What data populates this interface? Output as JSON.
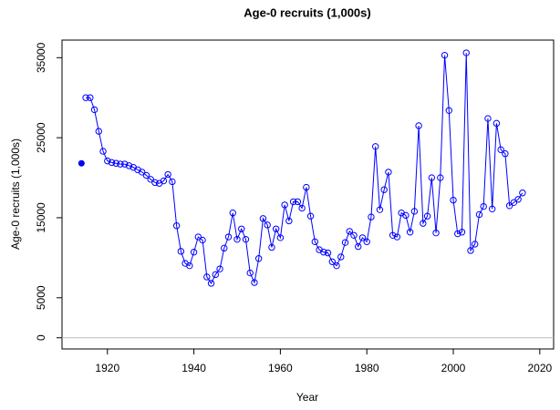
{
  "chart_data": {
    "type": "line",
    "title": "Age-0 recruits (1,000s)",
    "xlabel": "Year",
    "ylabel": "Age-0 recruits (1,000s)",
    "xlim": [
      1909.5,
      2023.2
    ],
    "ylim": [
      -1400,
      37200
    ],
    "xticks": [
      1920,
      1940,
      1960,
      1980,
      2000,
      2020
    ],
    "yticks": [
      0,
      5000,
      15000,
      25000,
      35000
    ],
    "hline": 0,
    "hline_color": "#bebebe",
    "series": [
      {
        "color": "#0000ff",
        "marker": "open-circle",
        "x": [
          1915,
          1916,
          1917,
          1918,
          1919,
          1920,
          1921,
          1922,
          1923,
          1924,
          1925,
          1926,
          1927,
          1928,
          1929,
          1930,
          1931,
          1932,
          1933,
          1934,
          1935,
          1936,
          1937,
          1938,
          1939,
          1940,
          1941,
          1942,
          1943,
          1944,
          1945,
          1946,
          1947,
          1948,
          1949,
          1950,
          1951,
          1952,
          1953,
          1954,
          1955,
          1956,
          1957,
          1958,
          1959,
          1960,
          1961,
          1962,
          1963,
          1964,
          1965,
          1966,
          1967,
          1968,
          1969,
          1970,
          1971,
          1972,
          1973,
          1974,
          1975,
          1976,
          1977,
          1978,
          1979,
          1980,
          1981,
          1982,
          1983,
          1984,
          1985,
          1986,
          1987,
          1988,
          1989,
          1990,
          1991,
          1992,
          1993,
          1994,
          1995,
          1996,
          1997,
          1998,
          1999,
          2000,
          2001,
          2002,
          2003,
          2004,
          2005,
          2006,
          2007,
          2008,
          2009,
          2010,
          2011,
          2012,
          2013,
          2014,
          2015,
          2016
        ],
        "values": [
          30000,
          30000,
          28500,
          25800,
          23300,
          22100,
          21900,
          21800,
          21700,
          21700,
          21500,
          21300,
          21000,
          20700,
          20300,
          19800,
          19400,
          19300,
          19600,
          20400,
          19500,
          14000,
          10800,
          9300,
          9000,
          10700,
          12600,
          12200,
          7600,
          6800,
          7900,
          8600,
          11200,
          12600,
          15600,
          12300,
          13600,
          12300,
          8100,
          6900,
          9900,
          14900,
          14100,
          11300,
          13600,
          12500,
          16600,
          14600,
          17000,
          17000,
          16200,
          18800,
          15200,
          12000,
          11000,
          10700,
          10600,
          9500,
          9000,
          10100,
          11900,
          13300,
          12800,
          11400,
          12500,
          12000,
          15100,
          23900,
          16000,
          18500,
          20700,
          12800,
          12600,
          15600,
          15300,
          13200,
          15800,
          26500,
          14300,
          15200,
          20000,
          13100,
          20000,
          35300,
          28400,
          17200,
          13000,
          13200,
          35600,
          10900,
          11700,
          15400,
          16400,
          27400,
          16100,
          26800,
          23500,
          23000,
          16500,
          16900,
          17300,
          18100
        ]
      },
      {
        "color": "#0000ff",
        "marker": "filled-circle",
        "x": [
          1914
        ],
        "values": [
          21800
        ]
      }
    ]
  }
}
